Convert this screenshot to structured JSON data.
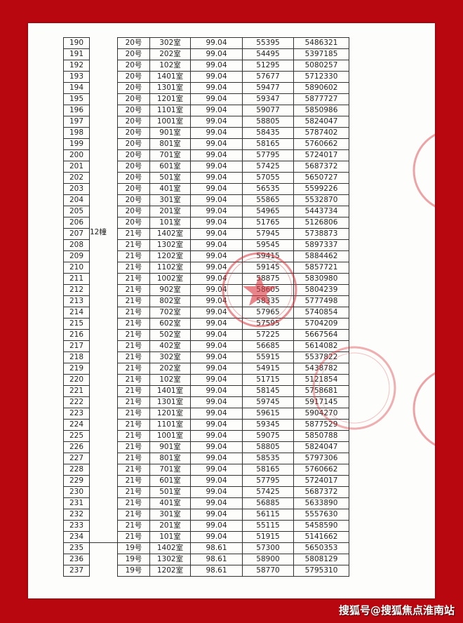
{
  "building_label": "12幢",
  "stamp_color": "#d9363e",
  "border_color": "#b8070f",
  "watermark": "搜狐号@搜狐焦点淮南站",
  "rows": [
    [
      "190",
      "20号",
      "302室",
      "99.04",
      "55395",
      "5486321"
    ],
    [
      "191",
      "20号",
      "202室",
      "99.04",
      "54495",
      "5397185"
    ],
    [
      "192",
      "20号",
      "102室",
      "99.04",
      "51295",
      "5080257"
    ],
    [
      "193",
      "20号",
      "1401室",
      "99.04",
      "57677",
      "5712330"
    ],
    [
      "194",
      "20号",
      "1301室",
      "99.04",
      "59477",
      "5890602"
    ],
    [
      "195",
      "20号",
      "1201室",
      "99.04",
      "59347",
      "5877727"
    ],
    [
      "196",
      "20号",
      "1101室",
      "99.04",
      "59077",
      "5850986"
    ],
    [
      "197",
      "20号",
      "1001室",
      "99.04",
      "58805",
      "5824047"
    ],
    [
      "198",
      "20号",
      "901室",
      "99.04",
      "58435",
      "5787402"
    ],
    [
      "199",
      "20号",
      "801室",
      "99.04",
      "58165",
      "5760662"
    ],
    [
      "200",
      "20号",
      "701室",
      "99.04",
      "57795",
      "5724017"
    ],
    [
      "201",
      "20号",
      "601室",
      "99.04",
      "57425",
      "5687372"
    ],
    [
      "202",
      "20号",
      "501室",
      "99.04",
      "57055",
      "5650727"
    ],
    [
      "203",
      "20号",
      "401室",
      "99.04",
      "56535",
      "5599226"
    ],
    [
      "204",
      "20号",
      "301室",
      "99.04",
      "55865",
      "5532870"
    ],
    [
      "205",
      "20号",
      "201室",
      "99.04",
      "54965",
      "5443734"
    ],
    [
      "206",
      "20号",
      "101室",
      "99.04",
      "51765",
      "5126806"
    ],
    [
      "207",
      "21号",
      "1402室",
      "99.04",
      "57945",
      "5738873"
    ],
    [
      "208",
      "21号",
      "1302室",
      "99.04",
      "59545",
      "5897337"
    ],
    [
      "209",
      "21号",
      "1202室",
      "99.04",
      "59415",
      "5884462"
    ],
    [
      "210",
      "21号",
      "1102室",
      "99.04",
      "59145",
      "5857721"
    ],
    [
      "211",
      "21号",
      "1002室",
      "99.04",
      "58875",
      "5830980"
    ],
    [
      "212",
      "21号",
      "902室",
      "99.04",
      "58605",
      "5804239"
    ],
    [
      "213",
      "21号",
      "802室",
      "99.04",
      "58335",
      "5777498"
    ],
    [
      "214",
      "21号",
      "702室",
      "99.04",
      "57965",
      "5740854"
    ],
    [
      "215",
      "21号",
      "602室",
      "99.04",
      "57595",
      "5704209"
    ],
    [
      "216",
      "21号",
      "502室",
      "99.04",
      "57225",
      "5667564"
    ],
    [
      "217",
      "21号",
      "402室",
      "99.04",
      "56685",
      "5614082"
    ],
    [
      "218",
      "21号",
      "302室",
      "99.04",
      "55915",
      "5537822"
    ],
    [
      "219",
      "21号",
      "202室",
      "99.04",
      "54915",
      "5438782"
    ],
    [
      "220",
      "21号",
      "102室",
      "99.04",
      "51715",
      "5121854"
    ],
    [
      "221",
      "21号",
      "1401室",
      "99.04",
      "58145",
      "5758681"
    ],
    [
      "222",
      "21号",
      "1301室",
      "99.04",
      "59745",
      "5917145"
    ],
    [
      "223",
      "21号",
      "1201室",
      "99.04",
      "59615",
      "5904270"
    ],
    [
      "224",
      "21号",
      "1101室",
      "99.04",
      "59345",
      "5877529"
    ],
    [
      "225",
      "21号",
      "1001室",
      "99.04",
      "59075",
      "5850788"
    ],
    [
      "226",
      "21号",
      "901室",
      "99.04",
      "58805",
      "5824047"
    ],
    [
      "227",
      "21号",
      "801室",
      "99.04",
      "58535",
      "5797306"
    ],
    [
      "228",
      "21号",
      "701室",
      "99.04",
      "58165",
      "5760662"
    ],
    [
      "229",
      "21号",
      "601室",
      "99.04",
      "57795",
      "5724017"
    ],
    [
      "230",
      "21号",
      "501室",
      "99.04",
      "57425",
      "5687372"
    ],
    [
      "231",
      "21号",
      "401室",
      "99.04",
      "56885",
      "5633890"
    ],
    [
      "232",
      "21号",
      "301室",
      "99.04",
      "56115",
      "5557630"
    ],
    [
      "233",
      "21号",
      "201室",
      "99.04",
      "55115",
      "5458590"
    ],
    [
      "234",
      "21号",
      "101室",
      "99.04",
      "51915",
      "5141662"
    ],
    [
      "235",
      "19号",
      "1402室",
      "98.61",
      "57300",
      "5650353"
    ],
    [
      "236",
      "19号",
      "1302室",
      "98.61",
      "58900",
      "5808129"
    ],
    [
      "237",
      "19号",
      "1202室",
      "98.61",
      "58770",
      "5795310"
    ]
  ]
}
